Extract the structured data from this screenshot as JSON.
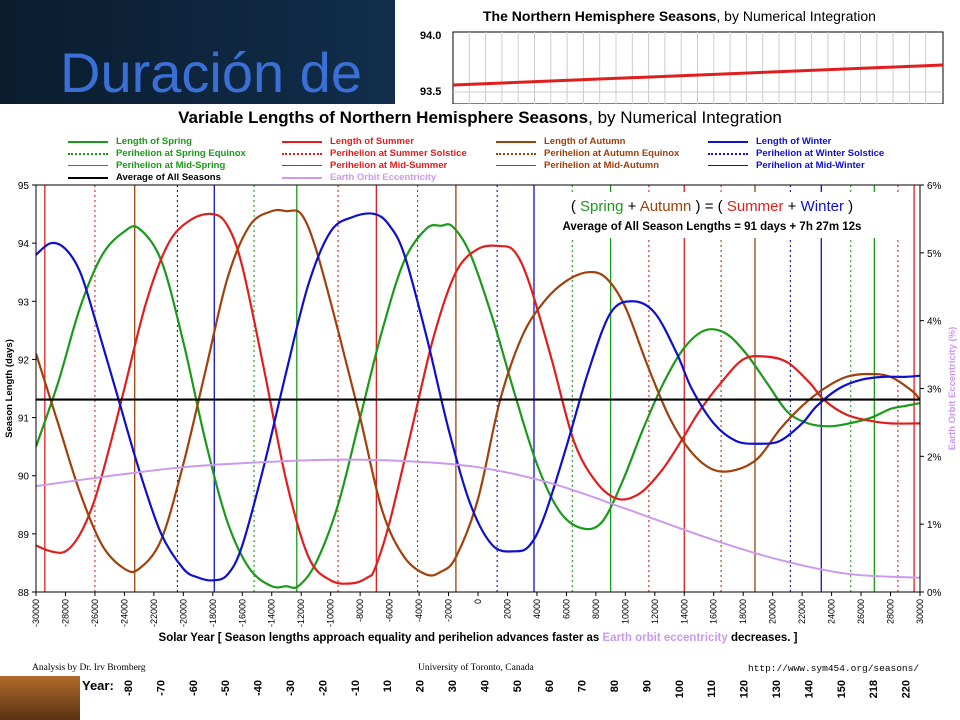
{
  "slide": {
    "title": "Duración de",
    "colors": {
      "background": "#0d2236",
      "title": "#3a6fd6"
    }
  },
  "behind_chart": {
    "title_bold": "The Northern Hemisphere Seasons",
    "title_rest": ", by Numerical Integration",
    "ticks": [
      "94.0",
      "93.5"
    ]
  },
  "bottom_strip": {
    "label": "Year:",
    "ticks": [
      "-80",
      "-70",
      "-60",
      "-50",
      "-40",
      "-30",
      "-20",
      "-10",
      "10",
      "20",
      "30",
      "40",
      "50",
      "60",
      "70",
      "80",
      "90",
      "100",
      "110",
      "120",
      "130",
      "140",
      "150",
      "218",
      "220"
    ]
  },
  "chart_data": {
    "type": "line",
    "title_bold": "Variable Lengths of Northern Hemisphere Seasons",
    "title_rest": ", by Numerical Integration",
    "ylabel": "Season Length (days)",
    "y2label": "Earth Orbit Eccentricity (%)",
    "xlabel_pre": "Solar Year [ Season lengths approach equality and perihelion advances faster as ",
    "xlabel_highlight": "Earth orbit eccentricity",
    "xlabel_post": " decreases. ]",
    "xlim": [
      -30000,
      30000
    ],
    "ylim": [
      88,
      95
    ],
    "y2lim": [
      0,
      6
    ],
    "x_ticks": [
      "-30000",
      "-28000",
      "-26000",
      "-24000",
      "-22000",
      "-20000",
      "-18000",
      "-16000",
      "-14000",
      "-12000",
      "-10000",
      "-8000",
      "-6000",
      "-4000",
      "-2000",
      "0",
      "2000",
      "4000",
      "6000",
      "8000",
      "10000",
      "12000",
      "14000",
      "16000",
      "18000",
      "20000",
      "22000",
      "24000",
      "26000",
      "28000",
      "30000"
    ],
    "y_ticks": [
      "88",
      "89",
      "90",
      "91",
      "92",
      "93",
      "94",
      "95"
    ],
    "y2_ticks": [
      "0%",
      "1%",
      "2%",
      "3%",
      "4%",
      "5%",
      "6%"
    ],
    "legend": [
      {
        "label": "Length of Spring",
        "color": "#1a9a1a",
        "style": "solid",
        "col": 0,
        "row": 0
      },
      {
        "label": "Perihelion at Spring Equinox",
        "color": "#1a9a1a",
        "style": "dotted",
        "col": 0,
        "row": 1
      },
      {
        "label": "Perihelion at Mid-Spring",
        "color": "#1a9a1a",
        "style": "thin",
        "col": 0,
        "row": 2
      },
      {
        "label": "Average of All Seasons",
        "color": "#000000",
        "style": "solid",
        "col": 0,
        "row": 3
      },
      {
        "label": "Length of Summer",
        "color": "#e01e1e",
        "style": "solid",
        "col": 1,
        "row": 0
      },
      {
        "label": "Perihelion at Summer Solstice",
        "color": "#e01e1e",
        "style": "dotted",
        "col": 1,
        "row": 1
      },
      {
        "label": "Perihelion at Mid-Summer",
        "color": "#e01e1e",
        "style": "thin",
        "col": 1,
        "row": 2
      },
      {
        "label": "Earth Orbit Eccentricity",
        "color": "#cc99ee",
        "style": "solid",
        "col": 1,
        "row": 3
      },
      {
        "label": "Length of Autumn",
        "color": "#a0400a",
        "style": "solid",
        "col": 2,
        "row": 0
      },
      {
        "label": "Perihelion at Autumn Equinox",
        "color": "#a0400a",
        "style": "dotted",
        "col": 2,
        "row": 1
      },
      {
        "label": "Perihelion at Mid-Autumn",
        "color": "#a0400a",
        "style": "thin",
        "col": 2,
        "row": 2
      },
      {
        "label": "Length of Winter",
        "color": "#1010cc",
        "style": "solid",
        "col": 3,
        "row": 0
      },
      {
        "label": "Perihelion at Winter Solstice",
        "color": "#1010cc",
        "style": "dotted",
        "col": 3,
        "row": 1
      },
      {
        "label": "Perihelion at Mid-Winter",
        "color": "#1010cc",
        "style": "thin",
        "col": 3,
        "row": 2
      }
    ],
    "annotation": {
      "eq_parts": [
        {
          "text": "( ",
          "color": "#000000"
        },
        {
          "text": "Spring",
          "color": "#1a9a1a"
        },
        {
          "text": " + ",
          "color": "#000000"
        },
        {
          "text": "Autumn",
          "color": "#a0400a"
        },
        {
          "text": " ) = ( ",
          "color": "#000000"
        },
        {
          "text": "Summer",
          "color": "#e01e1e"
        },
        {
          "text": " + ",
          "color": "#000000"
        },
        {
          "text": "Winter",
          "color": "#1010cc"
        },
        {
          "text": " )",
          "color": "#000000"
        }
      ],
      "average": "Average of All Season Lengths = 91 days + 7h 27m 12s"
    },
    "average": 91.31,
    "series": [
      {
        "name": "Length of Spring",
        "color": "#1a9a1a",
        "x": [
          -30000,
          -28500,
          -27000,
          -25500,
          -24000,
          -23000,
          -21500,
          -20000,
          -18500,
          -17000,
          -15500,
          -14000,
          -13000,
          -12200,
          -11000,
          -9500,
          -8000,
          -6500,
          -5000,
          -3500,
          -2500,
          -1700,
          -500,
          1000,
          2500,
          4000,
          5500,
          7000,
          8400,
          9800,
          11200,
          12600,
          14000,
          15400,
          16800,
          18200,
          19600,
          21000,
          22400,
          23800,
          25200,
          26700,
          28000,
          29000,
          30000
        ],
        "y": [
          90.5,
          91.6,
          92.9,
          93.8,
          94.2,
          94.25,
          93.7,
          92.3,
          90.6,
          89.2,
          88.4,
          88.1,
          88.1,
          88.1,
          88.5,
          89.5,
          91.0,
          92.5,
          93.7,
          94.25,
          94.3,
          94.28,
          93.8,
          92.7,
          91.4,
          90.2,
          89.4,
          89.1,
          89.2,
          89.9,
          90.8,
          91.6,
          92.2,
          92.5,
          92.45,
          92.1,
          91.6,
          91.1,
          90.9,
          90.85,
          90.9,
          91.0,
          91.15,
          91.2,
          91.25
        ]
      },
      {
        "name": "Length of Summer",
        "color": "#e01e1e",
        "x": [
          -30000,
          -29000,
          -28000,
          -27000,
          -26000,
          -25000,
          -24000,
          -22500,
          -21000,
          -19500,
          -18000,
          -17000,
          -16000,
          -14500,
          -13000,
          -11500,
          -10000,
          -8500,
          -7500,
          -7000,
          -6000,
          -4500,
          -3000,
          -1500,
          0,
          1500,
          2500,
          3500,
          5000,
          6500,
          8000,
          9500,
          11000,
          12500,
          13800,
          15000,
          16500,
          18000,
          19500,
          21000,
          22500,
          23500,
          25000,
          26500,
          28000,
          30000
        ],
        "y": [
          88.8,
          88.7,
          88.7,
          89.0,
          89.6,
          90.5,
          91.5,
          93.0,
          94.0,
          94.4,
          94.5,
          94.3,
          93.6,
          91.8,
          89.9,
          88.6,
          88.2,
          88.15,
          88.25,
          88.4,
          89.2,
          90.8,
          92.4,
          93.5,
          93.9,
          93.95,
          93.85,
          93.3,
          92.0,
          90.6,
          89.9,
          89.6,
          89.7,
          90.1,
          90.6,
          91.1,
          91.6,
          92.0,
          92.05,
          91.95,
          91.6,
          91.3,
          91.05,
          90.95,
          90.9,
          90.9
        ]
      },
      {
        "name": "Length of Autumn",
        "color": "#a0400a",
        "x": [
          -30000,
          -28500,
          -27000,
          -25500,
          -24000,
          -23000,
          -21500,
          -20000,
          -18500,
          -17000,
          -15500,
          -14000,
          -13000,
          -12000,
          -11000,
          -9500,
          -8000,
          -6500,
          -5000,
          -3500,
          -2500,
          -1500,
          0,
          1500,
          3000,
          4500,
          6000,
          7500,
          8700,
          10000,
          11500,
          13000,
          14500,
          16000,
          17500,
          19000,
          20500,
          22000,
          23500,
          25000,
          26500,
          28000,
          29500,
          30000
        ],
        "y": [
          92.1,
          90.9,
          89.7,
          88.8,
          88.4,
          88.4,
          88.9,
          90.2,
          91.8,
          93.4,
          94.3,
          94.55,
          94.55,
          94.5,
          93.9,
          92.5,
          91.0,
          89.4,
          88.6,
          88.3,
          88.35,
          88.6,
          89.6,
          91.3,
          92.4,
          93.0,
          93.35,
          93.5,
          93.4,
          92.9,
          91.9,
          91.0,
          90.4,
          90.1,
          90.1,
          90.3,
          90.8,
          91.2,
          91.5,
          91.7,
          91.75,
          91.7,
          91.45,
          91.3
        ]
      },
      {
        "name": "Length of Winter",
        "color": "#1010cc",
        "x": [
          -30000,
          -29000,
          -28000,
          -27000,
          -26000,
          -24500,
          -23000,
          -21500,
          -20000,
          -19000,
          -18000,
          -17000,
          -16000,
          -14500,
          -13000,
          -11500,
          -10000,
          -8500,
          -7000,
          -6000,
          -5000,
          -3500,
          -2000,
          -500,
          1000,
          2500,
          3500,
          4500,
          6000,
          7500,
          9000,
          10500,
          12000,
          13500,
          14500,
          16000,
          17500,
          19000,
          20500,
          22000,
          23000,
          24500,
          26000,
          27500,
          29000,
          30000
        ],
        "y": [
          93.8,
          94.0,
          93.9,
          93.5,
          92.7,
          91.4,
          90.1,
          89.0,
          88.4,
          88.25,
          88.2,
          88.3,
          88.8,
          90.2,
          91.8,
          93.3,
          94.2,
          94.45,
          94.5,
          94.3,
          93.8,
          92.4,
          90.8,
          89.5,
          88.8,
          88.7,
          88.8,
          89.3,
          90.5,
          91.8,
          92.8,
          93.0,
          92.8,
          92.1,
          91.5,
          90.9,
          90.6,
          90.55,
          90.6,
          90.9,
          91.2,
          91.5,
          91.65,
          91.7,
          91.7,
          91.72
        ]
      },
      {
        "name": "Average of All Seasons",
        "color": "#000000",
        "x": [
          -30000,
          30000
        ],
        "y": [
          91.31,
          91.31
        ]
      },
      {
        "name": "Earth Orbit Eccentricity",
        "color": "#cc99ee",
        "axis": "y2",
        "x": [
          -30000,
          -25000,
          -20000,
          -15000,
          -10000,
          -5000,
          0,
          5000,
          10000,
          15000,
          20000,
          25000,
          30000
        ],
        "y": [
          1.56,
          1.71,
          1.84,
          1.91,
          1.95,
          1.93,
          1.84,
          1.6,
          1.23,
          0.84,
          0.5,
          0.27,
          0.21
        ]
      }
    ],
    "vertical_markers": [
      {
        "x": -29400,
        "color": "#e01e1e",
        "style": "solid"
      },
      {
        "x": -26000,
        "color": "#e01e1e",
        "style": "dotted"
      },
      {
        "x": -23300,
        "color": "#a0400a",
        "style": "solid"
      },
      {
        "x": -20400,
        "color": "#1010cc",
        "style": "dotted"
      },
      {
        "x": -17900,
        "color": "#1010cc",
        "style": "solid"
      },
      {
        "x": -15200,
        "color": "#1a9a1a",
        "style": "dotted"
      },
      {
        "x": -12300,
        "color": "#1a9a1a",
        "style": "solid"
      },
      {
        "x": -9500,
        "color": "#e01e1e",
        "style": "dotted"
      },
      {
        "x": -6900,
        "color": "#e01e1e",
        "style": "solid"
      },
      {
        "x": -4100,
        "color": "#a0400a",
        "style": "dotted"
      },
      {
        "x": -1500,
        "color": "#a0400a",
        "style": "solid"
      },
      {
        "x": 1300,
        "color": "#1010cc",
        "style": "dotted"
      },
      {
        "x": 3800,
        "color": "#1010cc",
        "style": "solid"
      },
      {
        "x": 6400,
        "color": "#1a9a1a",
        "style": "dotted"
      },
      {
        "x": 9000,
        "color": "#1a9a1a",
        "style": "solid"
      },
      {
        "x": 11600,
        "color": "#e01e1e",
        "style": "dotted"
      },
      {
        "x": 14000,
        "color": "#e01e1e",
        "style": "solid"
      },
      {
        "x": 16500,
        "color": "#a0400a",
        "style": "dotted"
      },
      {
        "x": 18800,
        "color": "#a0400a",
        "style": "solid"
      },
      {
        "x": 21200,
        "color": "#1010cc",
        "style": "dotted"
      },
      {
        "x": 23300,
        "color": "#1010cc",
        "style": "solid"
      },
      {
        "x": 25300,
        "color": "#1a9a1a",
        "style": "dotted"
      },
      {
        "x": 26900,
        "color": "#1a9a1a",
        "style": "solid"
      },
      {
        "x": 28500,
        "color": "#e01e1e",
        "style": "dotted"
      },
      {
        "x": 29600,
        "color": "#e01e1e",
        "style": "solid"
      }
    ]
  },
  "footer": {
    "left": "Analysis by Dr. Irv Bromberg",
    "center": "University of Toronto, Canada",
    "right": "http://www.sym454.org/seasons/"
  }
}
